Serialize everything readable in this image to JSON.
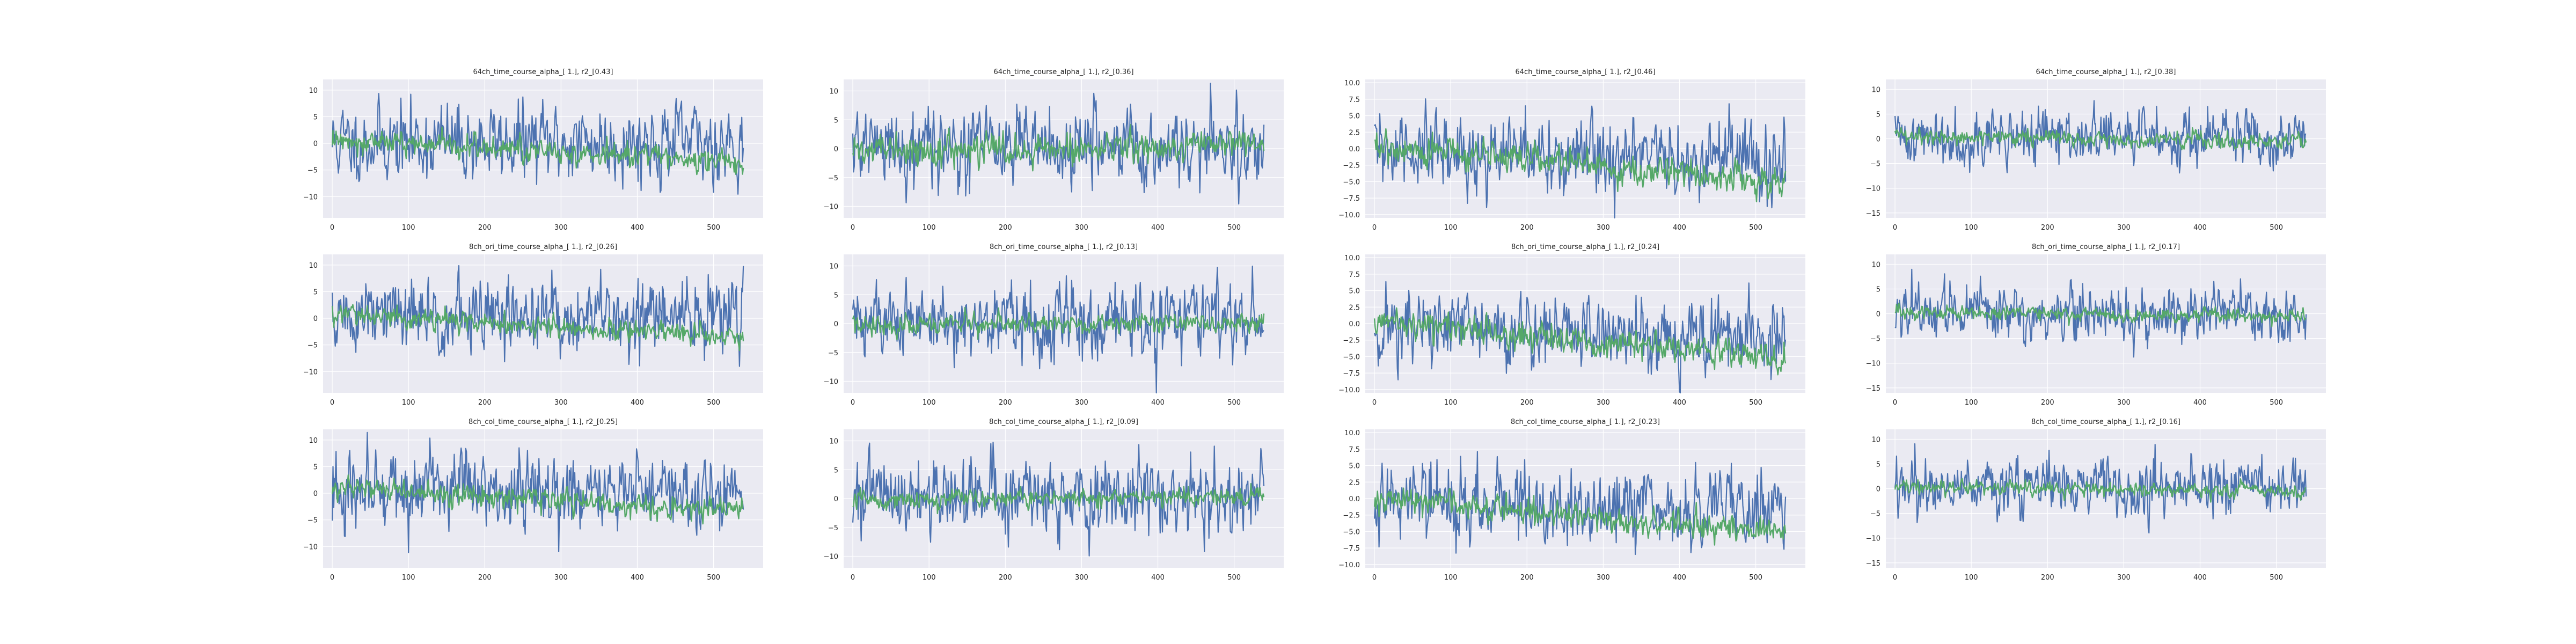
{
  "figure": {
    "background": "#ffffff",
    "axes_facecolor": "#eaeaf2",
    "grid_color": "#ffffff",
    "series_colors": [
      "#4c72b0",
      "#55a868"
    ]
  },
  "chart_data": [
    {
      "type": "line",
      "title": "64ch_time_course_alpha_[ 1.], r2_[0.43]",
      "xlim": [
        -12,
        565
      ],
      "ylim": [
        -14,
        12
      ],
      "xticks": [
        0,
        100,
        200,
        300,
        400,
        500
      ],
      "yticks": [
        -10,
        -5,
        0,
        5,
        10
      ],
      "ytick_labels": [
        "−10",
        "−5",
        "0",
        "5",
        "10"
      ],
      "grid": true,
      "series": [
        {
          "values": {
            "n": 540,
            "amp": 5.2,
            "mean": 0.2,
            "slope": 0,
            "seed": 11
          }
        },
        {
          "values": {
            "n": 540,
            "amp": 1.6,
            "mean": 0.8,
            "slope": -0.008,
            "seed": 12
          }
        }
      ]
    },
    {
      "type": "line",
      "title": "64ch_time_course_alpha_[ 1.], r2_[0.36]",
      "xlim": [
        -12,
        565
      ],
      "ylim": [
        -12,
        12
      ],
      "xticks": [
        0,
        100,
        200,
        300,
        400,
        500
      ],
      "yticks": [
        -10,
        -5,
        0,
        5,
        10
      ],
      "ytick_labels": [
        "−10",
        "−5",
        "0",
        "5",
        "10"
      ],
      "grid": true,
      "series": [
        {
          "values": {
            "n": 540,
            "amp": 4.8,
            "mean": 0.5,
            "slope": 0,
            "seed": 21
          }
        },
        {
          "values": {
            "n": 540,
            "amp": 1.8,
            "mean": -0.5,
            "slope": 0.002,
            "seed": 22
          }
        }
      ]
    },
    {
      "type": "line",
      "title": "64ch_time_course_alpha_[ 1.], r2_[0.46]",
      "xlim": [
        -12,
        565
      ],
      "ylim": [
        -10.5,
        10.5
      ],
      "xticks": [
        0,
        100,
        200,
        300,
        400,
        500
      ],
      "yticks": [
        -10,
        -7.5,
        -5,
        -2.5,
        0,
        2.5,
        5,
        7.5,
        10
      ],
      "ytick_labels": [
        "−10.0",
        "−7.5",
        "−5.0",
        "−2.5",
        "0.0",
        "2.5",
        "5.0",
        "7.5",
        "10.0"
      ],
      "grid": true,
      "series": [
        {
          "values": {
            "n": 540,
            "amp": 4.3,
            "mean": -0.5,
            "slope": -0.003,
            "seed": 31
          }
        },
        {
          "values": {
            "n": 540,
            "amp": 1.7,
            "mean": 0.5,
            "slope": -0.011,
            "seed": 32
          }
        }
      ]
    },
    {
      "type": "line",
      "title": "64ch_time_course_alpha_[ 1.], r2_[0.38]",
      "xlim": [
        -12,
        565
      ],
      "ylim": [
        -16,
        12
      ],
      "xticks": [
        0,
        100,
        200,
        300,
        400,
        500
      ],
      "yticks": [
        -15,
        -10,
        -5,
        0,
        5,
        10
      ],
      "ytick_labels": [
        "−15",
        "−10",
        "−5",
        "0",
        "5",
        "10"
      ],
      "grid": true,
      "series": [
        {
          "values": {
            "n": 540,
            "amp": 4.0,
            "mean": 0.3,
            "slope": 0,
            "seed": 41
          }
        },
        {
          "values": {
            "n": 540,
            "amp": 1.2,
            "mean": 0.5,
            "slope": -0.002,
            "seed": 42
          }
        }
      ]
    },
    {
      "type": "line",
      "title": "8ch_ori_time_course_alpha_[ 1.], r2_[0.26]",
      "xlim": [
        -12,
        565
      ],
      "ylim": [
        -14,
        12
      ],
      "xticks": [
        0,
        100,
        200,
        300,
        400,
        500
      ],
      "yticks": [
        -10,
        -5,
        0,
        5,
        10
      ],
      "ytick_labels": [
        "−10",
        "−5",
        "0",
        "5",
        "10"
      ],
      "grid": true,
      "series": [
        {
          "values": {
            "n": 540,
            "amp": 5.2,
            "mean": 0.2,
            "slope": 0,
            "seed": 51
          }
        },
        {
          "values": {
            "n": 540,
            "amp": 1.4,
            "mean": 0.8,
            "slope": -0.008,
            "seed": 52
          }
        }
      ]
    },
    {
      "type": "line",
      "title": "8ch_ori_time_course_alpha_[ 1.], r2_[0.13]",
      "xlim": [
        -12,
        565
      ],
      "ylim": [
        -12,
        12
      ],
      "xticks": [
        0,
        100,
        200,
        300,
        400,
        500
      ],
      "yticks": [
        -10,
        -5,
        0,
        5,
        10
      ],
      "ytick_labels": [
        "−10",
        "−5",
        "0",
        "5",
        "10"
      ],
      "grid": true,
      "series": [
        {
          "values": {
            "n": 540,
            "amp": 4.8,
            "mean": 0.5,
            "slope": 0,
            "seed": 61
          }
        },
        {
          "values": {
            "n": 540,
            "amp": 1.2,
            "mean": -0.3,
            "slope": 0.001,
            "seed": 62
          }
        }
      ]
    },
    {
      "type": "line",
      "title": "8ch_ori_time_course_alpha_[ 1.], r2_[0.24]",
      "xlim": [
        -12,
        565
      ],
      "ylim": [
        -10.5,
        10.5
      ],
      "xticks": [
        0,
        100,
        200,
        300,
        400,
        500
      ],
      "yticks": [
        -10,
        -7.5,
        -5,
        -2.5,
        0,
        2.5,
        5,
        7.5,
        10
      ],
      "ytick_labels": [
        "−10.0",
        "−7.5",
        "−5.0",
        "−2.5",
        "0.0",
        "2.5",
        "5.0",
        "7.5",
        "10.0"
      ],
      "grid": true,
      "series": [
        {
          "values": {
            "n": 540,
            "amp": 4.3,
            "mean": -0.5,
            "slope": -0.003,
            "seed": 71
          }
        },
        {
          "values": {
            "n": 540,
            "amp": 1.5,
            "mean": 0.2,
            "slope": -0.01,
            "seed": 72
          }
        }
      ]
    },
    {
      "type": "line",
      "title": "8ch_ori_time_course_alpha_[ 1.], r2_[0.17]",
      "xlim": [
        -12,
        565
      ],
      "ylim": [
        -16,
        12
      ],
      "xticks": [
        0,
        100,
        200,
        300,
        400,
        500
      ],
      "yticks": [
        -15,
        -10,
        -5,
        0,
        5,
        10
      ],
      "ytick_labels": [
        "−15",
        "−10",
        "−5",
        "0",
        "5",
        "10"
      ],
      "grid": true,
      "series": [
        {
          "values": {
            "n": 540,
            "amp": 4.0,
            "mean": 0.3,
            "slope": 0,
            "seed": 81
          }
        },
        {
          "values": {
            "n": 540,
            "amp": 1.0,
            "mean": 0.4,
            "slope": -0.002,
            "seed": 82
          }
        }
      ]
    },
    {
      "type": "line",
      "title": "8ch_col_time_course_alpha_[ 1.], r2_[0.25]",
      "xlim": [
        -12,
        565
      ],
      "ylim": [
        -14,
        12
      ],
      "xticks": [
        0,
        100,
        200,
        300,
        400,
        500
      ],
      "yticks": [
        -10,
        -5,
        0,
        5,
        10
      ],
      "ytick_labels": [
        "−10",
        "−5",
        "0",
        "5",
        "10"
      ],
      "grid": true,
      "series": [
        {
          "values": {
            "n": 540,
            "amp": 5.2,
            "mean": 0.2,
            "slope": 0,
            "seed": 91
          }
        },
        {
          "values": {
            "n": 540,
            "amp": 1.5,
            "mean": 1.0,
            "slope": -0.008,
            "seed": 92
          }
        }
      ]
    },
    {
      "type": "line",
      "title": "8ch_col_time_course_alpha_[ 1.], r2_[0.09]",
      "xlim": [
        -12,
        565
      ],
      "ylim": [
        -12,
        12
      ],
      "xticks": [
        0,
        100,
        200,
        300,
        400,
        500
      ],
      "yticks": [
        -10,
        -5,
        0,
        5,
        10
      ],
      "ytick_labels": [
        "−10",
        "−5",
        "0",
        "5",
        "10"
      ],
      "grid": true,
      "series": [
        {
          "values": {
            "n": 540,
            "amp": 4.8,
            "mean": 0.5,
            "slope": 0,
            "seed": 101
          }
        },
        {
          "values": {
            "n": 540,
            "amp": 1.1,
            "mean": -0.3,
            "slope": 0.001,
            "seed": 102
          }
        }
      ]
    },
    {
      "type": "line",
      "title": "8ch_col_time_course_alpha_[ 1.], r2_[0.23]",
      "xlim": [
        -12,
        565
      ],
      "ylim": [
        -10.5,
        10.5
      ],
      "xticks": [
        0,
        100,
        200,
        300,
        400,
        500
      ],
      "yticks": [
        -10,
        -7.5,
        -5,
        -2.5,
        0,
        2.5,
        5,
        7.5,
        10
      ],
      "ytick_labels": [
        "−10.0",
        "−7.5",
        "−5.0",
        "−2.5",
        "0.0",
        "2.5",
        "5.0",
        "7.5",
        "10.0"
      ],
      "grid": true,
      "series": [
        {
          "values": {
            "n": 540,
            "amp": 4.3,
            "mean": -0.5,
            "slope": -0.003,
            "seed": 111
          }
        },
        {
          "values": {
            "n": 540,
            "amp": 1.5,
            "mean": 0.2,
            "slope": -0.01,
            "seed": 112
          }
        }
      ]
    },
    {
      "type": "line",
      "title": "8ch_col_time_course_alpha_[ 1.], r2_[0.16]",
      "xlim": [
        -12,
        565
      ],
      "ylim": [
        -16,
        12
      ],
      "xticks": [
        0,
        100,
        200,
        300,
        400,
        500
      ],
      "yticks": [
        -15,
        -10,
        -5,
        0,
        5,
        10
      ],
      "ytick_labels": [
        "−15",
        "−10",
        "−5",
        "0",
        "5",
        "10"
      ],
      "grid": true,
      "series": [
        {
          "values": {
            "n": 540,
            "amp": 4.0,
            "mean": 0.3,
            "slope": 0,
            "seed": 121
          }
        },
        {
          "values": {
            "n": 540,
            "amp": 1.0,
            "mean": 0.4,
            "slope": -0.002,
            "seed": 122
          }
        }
      ]
    }
  ]
}
